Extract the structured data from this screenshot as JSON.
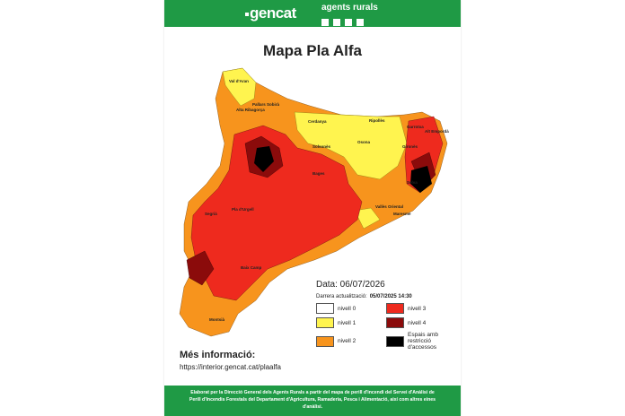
{
  "header": {
    "brand": "gencat",
    "unit": "agents rurals"
  },
  "title": "Mapa Pla Alfa",
  "date": "Data: 06/07/2026",
  "update_label": "Darrera actualització:",
  "update_value": "05/07/2025  14:30",
  "legend": [
    {
      "label": "nivell 0",
      "color": "#ffffff"
    },
    {
      "label": "nivell 3",
      "color": "#ee2a1e"
    },
    {
      "label": "nivell 1",
      "color": "#fff44f"
    },
    {
      "label": "nivell 4",
      "color": "#8b0b0b"
    },
    {
      "label": "nivell 2",
      "color": "#f7941d"
    },
    {
      "label": "Espais amb restricció d'accessos",
      "color": "#000000"
    }
  ],
  "map": {
    "labels": [
      "Val d'Aran",
      "Alta Ribagorça",
      "Pallars Sobirà",
      "Cerdanya",
      "Ripollès",
      "Garrotxa",
      "Alt Empordà",
      "Gironès",
      "Osona",
      "Solsonès",
      "Bages",
      "Selva",
      "Segrià",
      "Pla d'Urgell",
      "Vallès Oriental",
      "Maresme",
      "Baix Camp",
      "Montsià"
    ]
  },
  "more_info": "Més informació:",
  "url": "https://interior.gencat.cat/plaalfa",
  "footer": [
    "Elaborat per la Direcció General dels Agents Rurals a partir del mapa de perill d'incendi del Servei d'Anàlisi de",
    "Perill d'Incendis Forestals del Departament d'Agricultura, Ramaderia, Pesca i Alimentació, així com altres eines",
    "d'anàlisi."
  ]
}
